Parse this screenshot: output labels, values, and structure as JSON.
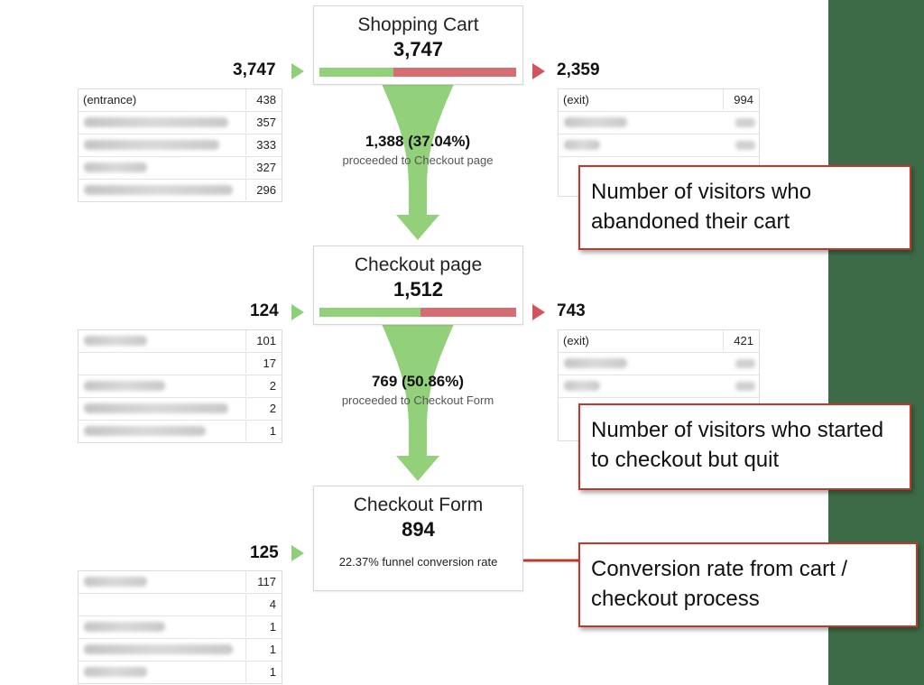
{
  "stages": [
    {
      "title": "Shopping Cart",
      "count": "3,747",
      "entries": "3,747",
      "exits": "2,359"
    },
    {
      "title": "Checkout page",
      "count": "1,512",
      "entries": "124",
      "exits": "743"
    },
    {
      "title": "Checkout Form",
      "count": "894",
      "entries": "125",
      "conversion": "22.37% funnel conversion rate"
    }
  ],
  "transitions": [
    {
      "main": "1,388 (37.04%)",
      "sub": "proceeded to Checkout page"
    },
    {
      "main": "769 (50.86%)",
      "sub": "proceeded to Checkout Form"
    }
  ],
  "entrance_lists": [
    [
      {
        "label": "(entrance)",
        "value": "438"
      },
      {
        "label": "",
        "value": "357"
      },
      {
        "label": "",
        "value": "333"
      },
      {
        "label": "",
        "value": "327"
      },
      {
        "label": "",
        "value": "296"
      }
    ],
    [
      {
        "label": "",
        "value": "101"
      },
      {
        "label": "",
        "value": "17"
      },
      {
        "label": "",
        "value": "2"
      },
      {
        "label": "",
        "value": "2"
      },
      {
        "label": "",
        "value": "1"
      }
    ],
    [
      {
        "label": "",
        "value": "117"
      },
      {
        "label": "",
        "value": "4"
      },
      {
        "label": "",
        "value": "1"
      },
      {
        "label": "",
        "value": "1"
      },
      {
        "label": "",
        "value": "1"
      }
    ]
  ],
  "exit_lists": [
    [
      {
        "label": "(exit)",
        "value": "994"
      }
    ],
    [
      {
        "label": "(exit)",
        "value": "421"
      }
    ]
  ],
  "callouts": [
    "Number of visitors who abandoned their cart",
    "Number of visitors who started to checkout but quit",
    "Conversion rate from cart / checkout process"
  ],
  "colors": {
    "proceed": "#93d07a",
    "drop": "#d56d72",
    "callout_border": "#c0392b",
    "background": "#3d6b47"
  }
}
